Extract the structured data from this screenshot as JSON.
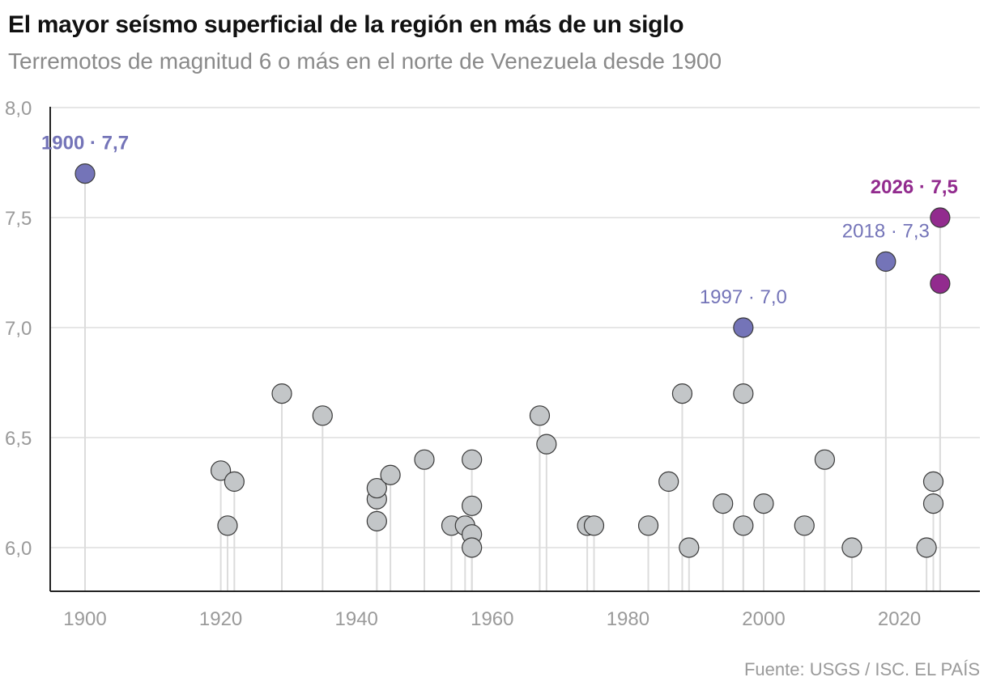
{
  "header": {
    "title": "El mayor seísmo superficial de la región en más de un siglo",
    "subtitle": "Terremotos de magnitud 6 o más en el norte de Venezuela desde 1900"
  },
  "footer": {
    "source": "Fuente: USGS / ISC. EL PAÍS"
  },
  "colors": {
    "default": "#c3c6c8",
    "historic": "#7474b8",
    "recent": "#922b8e",
    "stem": "#dcdcdc",
    "grid": "#dddddd"
  },
  "chart_data": {
    "type": "scatter",
    "title": "El mayor seísmo superficial de la región en más de un siglo",
    "subtitle": "Terremotos de magnitud 6 o más en el norte de Venezuela desde 1900",
    "xlabel": "",
    "ylabel": "",
    "xlim": [
      1895,
      2032
    ],
    "ylim": [
      5.8,
      8.0
    ],
    "x_ticks": [
      "1900",
      "1920",
      "1940",
      "1960",
      "1980",
      "2000",
      "2020"
    ],
    "y_ticks": [
      "6,0",
      "6,5",
      "7,0",
      "7,5",
      "8,0"
    ],
    "grid": true,
    "points": [
      {
        "x": 1900,
        "y": 7.7,
        "group": "historic"
      },
      {
        "x": 1920,
        "y": 6.35,
        "group": "default"
      },
      {
        "x": 1921,
        "y": 6.1,
        "group": "default"
      },
      {
        "x": 1922,
        "y": 6.3,
        "group": "default"
      },
      {
        "x": 1929,
        "y": 6.7,
        "group": "default"
      },
      {
        "x": 1935,
        "y": 6.6,
        "group": "default"
      },
      {
        "x": 1943,
        "y": 6.22,
        "group": "default"
      },
      {
        "x": 1943,
        "y": 6.27,
        "group": "default"
      },
      {
        "x": 1943,
        "y": 6.12,
        "group": "default"
      },
      {
        "x": 1945,
        "y": 6.33,
        "group": "default"
      },
      {
        "x": 1950,
        "y": 6.4,
        "group": "default"
      },
      {
        "x": 1954,
        "y": 6.1,
        "group": "default"
      },
      {
        "x": 1956,
        "y": 6.1,
        "group": "default"
      },
      {
        "x": 1957,
        "y": 6.19,
        "group": "default"
      },
      {
        "x": 1957,
        "y": 6.06,
        "group": "default"
      },
      {
        "x": 1957,
        "y": 6.0,
        "group": "default"
      },
      {
        "x": 1957,
        "y": 6.4,
        "group": "default"
      },
      {
        "x": 1967,
        "y": 6.6,
        "group": "default"
      },
      {
        "x": 1968,
        "y": 6.47,
        "group": "default"
      },
      {
        "x": 1974,
        "y": 6.1,
        "group": "default"
      },
      {
        "x": 1975,
        "y": 6.1,
        "group": "default"
      },
      {
        "x": 1983,
        "y": 6.1,
        "group": "default"
      },
      {
        "x": 1986,
        "y": 6.3,
        "group": "default"
      },
      {
        "x": 1988,
        "y": 6.7,
        "group": "default"
      },
      {
        "x": 1989,
        "y": 6.0,
        "group": "default"
      },
      {
        "x": 1994,
        "y": 6.2,
        "group": "default"
      },
      {
        "x": 1997,
        "y": 6.7,
        "group": "default"
      },
      {
        "x": 1997,
        "y": 6.1,
        "group": "default"
      },
      {
        "x": 1997,
        "y": 7.0,
        "group": "historic"
      },
      {
        "x": 2000,
        "y": 6.2,
        "group": "default"
      },
      {
        "x": 2006,
        "y": 6.1,
        "group": "default"
      },
      {
        "x": 2009,
        "y": 6.4,
        "group": "default"
      },
      {
        "x": 2013,
        "y": 6.0,
        "group": "default"
      },
      {
        "x": 2018,
        "y": 7.3,
        "group": "historic"
      },
      {
        "x": 2024,
        "y": 6.0,
        "group": "default"
      },
      {
        "x": 2025,
        "y": 6.3,
        "group": "default"
      },
      {
        "x": 2025,
        "y": 6.2,
        "group": "default"
      },
      {
        "x": 2026,
        "y": 7.2,
        "group": "recent"
      },
      {
        "x": 2026,
        "y": 7.5,
        "group": "recent"
      }
    ],
    "annotations": [
      {
        "x": 1900,
        "y": 7.7,
        "text": "1900 · 7,7",
        "group": "historic",
        "bold": true
      },
      {
        "x": 1997,
        "y": 7.0,
        "text": "1997 · 7,0",
        "group": "historic",
        "bold": false
      },
      {
        "x": 2018,
        "y": 7.3,
        "text": "2018 · 7,3",
        "group": "historic",
        "bold": false
      },
      {
        "x": 2026,
        "y": 7.5,
        "text": "2026 · 7,5",
        "group": "recent",
        "bold": true
      }
    ]
  }
}
